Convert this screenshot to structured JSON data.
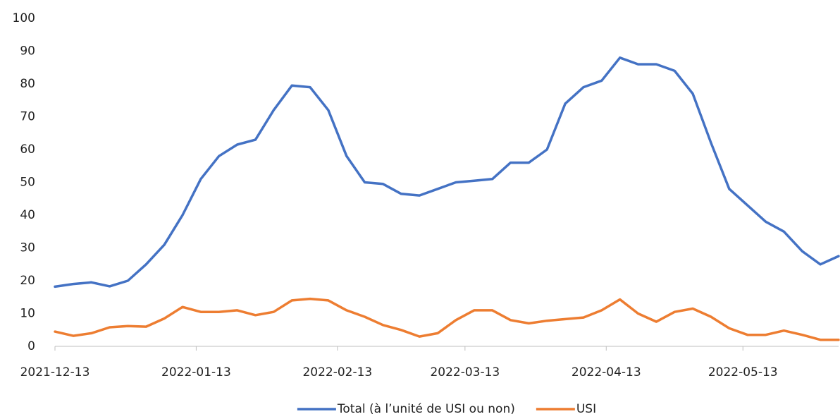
{
  "chart_data": {
    "type": "line",
    "x": [
      "2021-12-13",
      "2021-12-17",
      "2021-12-21",
      "2021-12-25",
      "2021-12-29",
      "2022-01-02",
      "2022-01-06",
      "2022-01-10",
      "2022-01-14",
      "2022-01-18",
      "2022-01-22",
      "2022-01-26",
      "2022-01-30",
      "2022-02-03",
      "2022-02-07",
      "2022-02-11",
      "2022-02-15",
      "2022-02-19",
      "2022-02-23",
      "2022-02-27",
      "2022-03-03",
      "2022-03-07",
      "2022-03-11",
      "2022-03-15",
      "2022-03-19",
      "2022-03-23",
      "2022-03-27",
      "2022-03-31",
      "2022-04-04",
      "2022-04-08",
      "2022-04-12",
      "2022-04-16",
      "2022-04-20",
      "2022-04-24",
      "2022-04-28",
      "2022-05-02",
      "2022-05-06",
      "2022-05-10",
      "2022-05-14",
      "2022-05-18",
      "2022-05-22",
      "2022-05-26",
      "2022-05-30",
      "2022-06-03"
    ],
    "series": [
      {
        "name": "Total (à l’unité de USI ou non)",
        "color": "#4472c4",
        "values": [
          18.2,
          19,
          19.5,
          18.3,
          20,
          25,
          31,
          40,
          51,
          58,
          61.5,
          63,
          72,
          79.5,
          79,
          72,
          58,
          50,
          49.5,
          46.5,
          46,
          48,
          50,
          50.5,
          51,
          56,
          56,
          60,
          74,
          79,
          81,
          88,
          86,
          86,
          84,
          77,
          62,
          48,
          43,
          38,
          35,
          29,
          25,
          27.5
        ]
      },
      {
        "name": "USI",
        "color": "#ed7d31",
        "values": [
          4.5,
          3.2,
          4,
          5.8,
          6.2,
          6,
          8.5,
          12,
          10.5,
          10.5,
          11,
          9.5,
          10.5,
          14,
          14.5,
          14,
          11,
          9,
          6.5,
          5,
          3,
          4,
          8,
          11,
          11,
          8,
          7,
          7.8,
          8.3,
          8.8,
          11,
          14.3,
          10,
          7.5,
          10.5,
          11.5,
          9,
          5.5,
          3.5,
          3.5,
          4.8,
          3.5,
          2,
          2
        ]
      }
    ],
    "xlim": [
      "2021-12-13",
      "2022-06-03"
    ],
    "xticks": [
      "2021-12-13",
      "2022-01-13",
      "2022-02-13",
      "2022-03-13",
      "2022-04-13",
      "2022-05-13"
    ],
    "ylim": [
      0,
      100
    ],
    "yticks": [
      0,
      10,
      20,
      30,
      40,
      50,
      60,
      70,
      80,
      90,
      100
    ],
    "legend": "bottom"
  }
}
